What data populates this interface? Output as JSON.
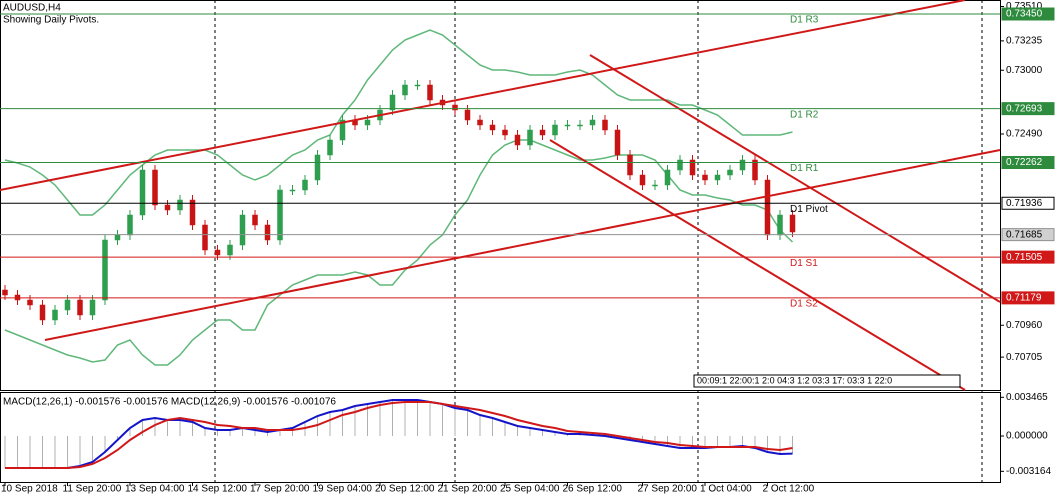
{
  "chart_data": [
    {
      "type": "candlestick",
      "title": "AUDUSD,H4",
      "subtitle": "Showing Daily Pivots.",
      "categories": [
        "10 Sep 2018",
        null,
        null,
        null,
        null,
        "11 Sep 20:00",
        null,
        null,
        null,
        null,
        "13 Sep 04:00",
        null,
        null,
        null,
        null,
        "14 Sep 12:00",
        null,
        null,
        null,
        null,
        "17 Sep 20:00",
        null,
        null,
        null,
        null,
        "19 Sep 04:00",
        null,
        null,
        null,
        null,
        "20 Sep 12:00",
        null,
        null,
        null,
        null,
        "21 Sep 20:00",
        null,
        null,
        null,
        null,
        "25 Sep 04:00",
        null,
        null,
        null,
        null,
        "26 Sep 12:00",
        null,
        null,
        null,
        null,
        null,
        "27 Sep 20:00",
        null,
        null,
        null,
        null,
        "1 Oct 04:00",
        null,
        null,
        null,
        null,
        "2 Oct 12:00",
        null,
        null
      ],
      "open": [
        0.71242,
        0.71202,
        0.71162,
        0.71122,
        0.71002,
        0.71082,
        0.71162,
        0.71042,
        0.71162,
        0.71642,
        0.71682,
        0.71842,
        0.72202,
        0.71922,
        0.71882,
        0.71962,
        0.71762,
        0.71562,
        0.71522,
        0.71602,
        0.71842,
        0.71762,
        0.71642,
        0.72042,
        0.72042,
        0.72122,
        0.72322,
        0.72442,
        0.72602,
        0.72562,
        0.72602,
        0.72682,
        0.72802,
        0.72882,
        0.72882,
        0.72762,
        0.72722,
        0.72682,
        0.72602,
        0.72562,
        0.72522,
        0.72482,
        0.72402,
        0.72522,
        0.72482,
        0.72562,
        0.72562,
        0.72562,
        0.72602,
        0.72522,
        0.72322,
        0.72162,
        0.72082,
        0.72082,
        0.72202,
        0.72282,
        0.72162,
        0.72122,
        0.72162,
        0.72202,
        0.72282,
        0.72122,
        0.71682,
        0.71842
      ],
      "high": [
        0.71282,
        0.71242,
        0.71202,
        0.71162,
        0.71122,
        0.71202,
        0.71202,
        0.71202,
        0.71682,
        0.71722,
        0.71882,
        0.72242,
        0.72242,
        0.71962,
        0.72002,
        0.72002,
        0.71802,
        0.71602,
        0.71642,
        0.71882,
        0.71882,
        0.71802,
        0.72082,
        0.72082,
        0.72162,
        0.72362,
        0.72482,
        0.72642,
        0.72642,
        0.72642,
        0.72722,
        0.72842,
        0.72922,
        0.72922,
        0.72922,
        0.72802,
        0.72762,
        0.72722,
        0.72642,
        0.72602,
        0.72562,
        0.72522,
        0.72562,
        0.72562,
        0.72602,
        0.72602,
        0.72602,
        0.72642,
        0.72642,
        0.72562,
        0.72362,
        0.72202,
        0.72122,
        0.72242,
        0.72322,
        0.72322,
        0.72202,
        0.72202,
        0.72242,
        0.72322,
        0.72322,
        0.72162,
        0.71882,
        0.71882
      ],
      "low": [
        0.71162,
        0.71122,
        0.71082,
        0.70962,
        0.70962,
        0.71042,
        0.71002,
        0.71002,
        0.71122,
        0.71602,
        0.71642,
        0.71802,
        0.71882,
        0.71842,
        0.71842,
        0.71722,
        0.71522,
        0.71482,
        0.71482,
        0.71562,
        0.71722,
        0.71602,
        0.71602,
        0.72002,
        0.72002,
        0.72082,
        0.72282,
        0.72402,
        0.72522,
        0.72522,
        0.72562,
        0.72642,
        0.72762,
        0.72842,
        0.72722,
        0.72682,
        0.72642,
        0.72562,
        0.72522,
        0.72482,
        0.72442,
        0.72362,
        0.72362,
        0.72442,
        0.72442,
        0.72522,
        0.72522,
        0.72522,
        0.72482,
        0.72282,
        0.72122,
        0.72042,
        0.72042,
        0.72042,
        0.72162,
        0.72122,
        0.72082,
        0.72082,
        0.72122,
        0.72162,
        0.72082,
        0.71642,
        0.71642,
        0.71666
      ],
      "close": [
        0.71202,
        0.71162,
        0.71122,
        0.71002,
        0.71082,
        0.71162,
        0.71042,
        0.71162,
        0.71642,
        0.71682,
        0.71842,
        0.72202,
        0.71922,
        0.71882,
        0.71962,
        0.71762,
        0.71562,
        0.71522,
        0.71602,
        0.71842,
        0.71762,
        0.71642,
        0.72042,
        0.72042,
        0.72122,
        0.72322,
        0.72442,
        0.72602,
        0.72562,
        0.72602,
        0.72682,
        0.72802,
        0.72882,
        0.72882,
        0.72762,
        0.72722,
        0.72682,
        0.72602,
        0.72562,
        0.72522,
        0.72482,
        0.72402,
        0.72522,
        0.72482,
        0.72562,
        0.72562,
        0.72562,
        0.72602,
        0.72522,
        0.72322,
        0.72162,
        0.72082,
        0.72082,
        0.72202,
        0.72282,
        0.72162,
        0.72122,
        0.72162,
        0.72202,
        0.72282,
        0.72122,
        0.71682,
        0.71842,
        0.71706
      ],
      "up_color": "#2e9e4f",
      "down_color": "#c81414",
      "bands": {
        "color": "#5fb87a",
        "upper": [
          0.72282,
          0.72258,
          0.72226,
          0.72162,
          0.72082,
          0.71962,
          0.71842,
          0.71842,
          0.71922,
          0.72042,
          0.72162,
          0.72242,
          0.72322,
          0.72362,
          0.72362,
          0.72362,
          0.72362,
          0.72322,
          0.72242,
          0.72162,
          0.72122,
          0.72162,
          0.72242,
          0.72322,
          0.72362,
          0.72442,
          0.72482,
          0.72642,
          0.72762,
          0.72922,
          0.73042,
          0.73162,
          0.73242,
          0.73282,
          0.73322,
          0.73282,
          0.73202,
          0.73122,
          0.73042,
          0.73002,
          0.73002,
          0.72986,
          0.72962,
          0.72962,
          0.72962,
          0.72986,
          0.73002,
          0.72962,
          0.72882,
          0.72802,
          0.72762,
          0.72762,
          0.72762,
          0.72762,
          0.72722,
          0.72722,
          0.72682,
          0.72642,
          0.72562,
          0.72482,
          0.72482,
          0.72482,
          0.72482,
          0.72506
        ],
        "lower": [
          0.70922,
          0.70882,
          0.70842,
          0.70802,
          0.70762,
          0.70722,
          0.70698,
          0.70666,
          0.70682,
          0.70802,
          0.70842,
          0.70722,
          0.70642,
          0.70642,
          0.70722,
          0.70842,
          0.70922,
          0.71002,
          0.71002,
          0.70922,
          0.70922,
          0.71122,
          0.71202,
          0.71282,
          0.71322,
          0.71362,
          0.71362,
          0.71362,
          0.71386,
          0.71362,
          0.71282,
          0.71282,
          0.71402,
          0.71482,
          0.71602,
          0.71682,
          0.71842,
          0.71962,
          0.72162,
          0.72322,
          0.72402,
          0.72442,
          0.72442,
          0.72402,
          0.72362,
          0.72322,
          0.72282,
          0.72282,
          0.72298,
          0.72322,
          0.72322,
          0.72322,
          0.72282,
          0.72162,
          0.72042,
          0.72002,
          0.72002,
          0.71978,
          0.71962,
          0.71922,
          0.71922,
          0.71882,
          0.71722,
          0.71626
        ]
      },
      "ylim": [
        0.70442,
        0.73562
      ],
      "yticks": [
        {
          "value": 0.7351,
          "label": "0.73510"
        },
        0.73235,
        {
          "value": 0.73,
          "label": "0.73000"
        },
        {
          "value": 0.7249,
          "label": "0.72490"
        },
        {
          "value": 0.7096,
          "label": "0.70960"
        },
        0.70705
      ],
      "levels": [
        {
          "name": "D1 R3",
          "value": 0.7345,
          "value_label": "0.73450",
          "color": "#2e8b3e"
        },
        {
          "name": "D1 R2",
          "value": 0.72693,
          "color": "#2e8b3e"
        },
        {
          "name": "D1 R1",
          "value": 0.72262,
          "color": "#2e8b3e"
        },
        {
          "name": "D1 Pivot",
          "value": 0.71936,
          "color": "#000000"
        },
        {
          "name": "D1 S1",
          "value": 0.71505,
          "color": "#d01818"
        },
        {
          "name": "D1 S2",
          "value": 0.71179,
          "color": "#d01818"
        }
      ],
      "current_price": 0.71685,
      "status_text": "00:09:1 22:00:1 2:0 04:3 1:2 03:3 17: 03:3 1 22:0"
    },
    {
      "type": "macd",
      "title": "MACD(12,26,1) -0.001576 -0.001576 MACD(12,26,9) -0.001576 -0.001076",
      "histogram_color": "#b0b0b0",
      "series": [
        {
          "color": "#1414c8",
          "values": [
            -0.002864,
            -0.002864,
            -0.002864,
            -0.002864,
            -0.002864,
            -0.002864,
            -0.002685,
            -0.002327,
            -0.001432,
            -0.000358,
            0.000716,
            0.001432,
            0.001611,
            0.001432,
            0.001432,
            0.001253,
            0.000716,
            0.000537,
            0.000537,
            0.000716,
            0.000537,
            0.000358,
            0.000537,
            0.000716,
            0.001253,
            0.00179,
            0.002148,
            0.002327,
            0.002685,
            0.002864,
            0.003043,
            0.003222,
            0.003222,
            0.003222,
            0.003043,
            0.002864,
            0.002506,
            0.002327,
            0.00188,
            0.001611,
            0.001253,
            0.000895,
            0.000716,
            0.000537,
            0.000358,
            0.000179,
            0.000179,
            9e-05,
            0,
            -0.000179,
            -0.000358,
            -0.000537,
            -0.000716,
            -0.000895,
            -0.001074,
            -0.001074,
            -0.001074,
            -0.000985,
            -0.000985,
            -0.000895,
            -0.001074,
            -0.001432,
            -0.001611,
            -0.001576
          ]
        },
        {
          "color": "#d01818",
          "values": [
            -0.002864,
            -0.002864,
            -0.002864,
            -0.002864,
            -0.002864,
            -0.002864,
            -0.002775,
            -0.002506,
            -0.001969,
            -0.001253,
            -0.000358,
            0.000358,
            0.000985,
            0.001432,
            0.001611,
            0.001432,
            0.001253,
            0.000985,
            0.000895,
            0.000716,
            0.000716,
            0.000537,
            0.000537,
            0.000537,
            0.000716,
            0.000985,
            0.001432,
            0.00188,
            0.002148,
            0.002506,
            0.002775,
            0.002954,
            0.003043,
            0.003043,
            0.003043,
            0.002864,
            0.002685,
            0.002506,
            0.002327,
            0.002059,
            0.00179,
            0.001432,
            0.001164,
            0.000895,
            0.000716,
            0.000448,
            0.000358,
            0.000269,
            0.000179,
            0,
            -0.000179,
            -0.000358,
            -0.000537,
            -0.000627,
            -0.000806,
            -0.000895,
            -0.000985,
            -0.000985,
            -0.000985,
            -0.000985,
            -0.000985,
            -0.001164,
            -0.001253,
            -0.001076
          ]
        }
      ],
      "ylim": [
        -0.00421,
        0.00394
      ],
      "yticks": [
        0.003465,
        {
          "value": 0,
          "label": "0.000000"
        },
        -0.003164
      ]
    }
  ]
}
